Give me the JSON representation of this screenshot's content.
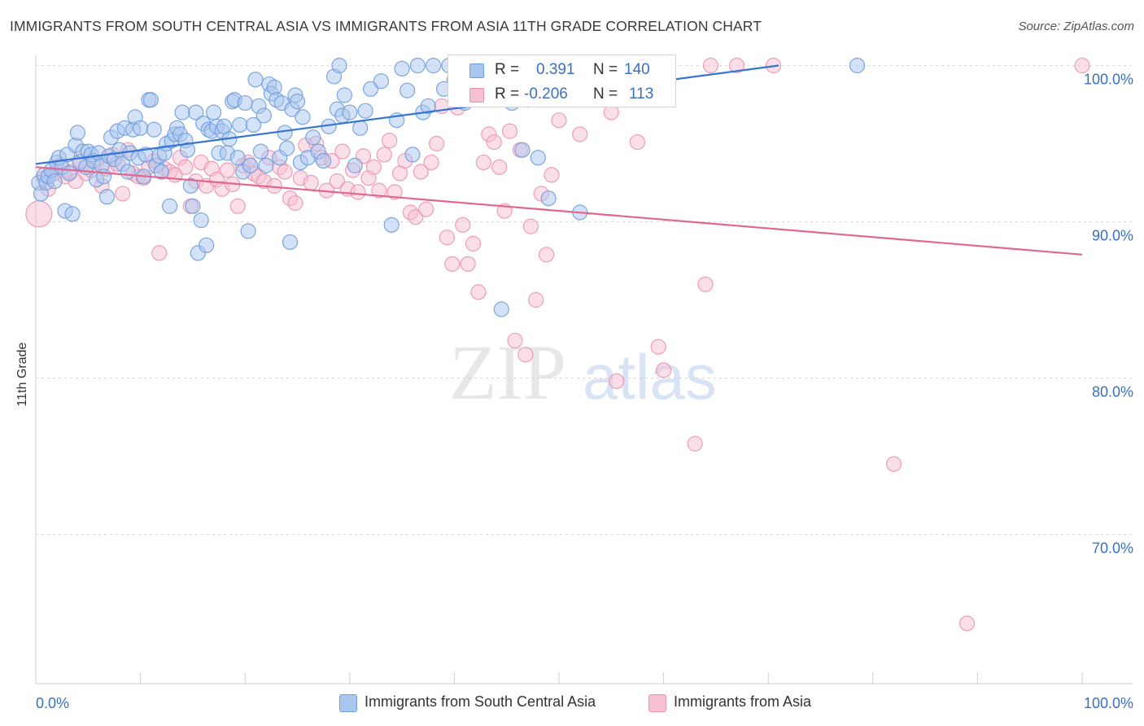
{
  "title": "IMMIGRANTS FROM SOUTH CENTRAL ASIA VS IMMIGRANTS FROM ASIA 11TH GRADE CORRELATION CHART",
  "source": "Source: ZipAtlas.com",
  "watermark": {
    "part1": "ZIP",
    "part2": "atlas"
  },
  "colors": {
    "blue_fill": "#a9c6ef",
    "blue_stroke": "#6f9ddd",
    "blue_line": "#3673d2",
    "pink_fill": "#f7c0d1",
    "pink_stroke": "#ec94b0",
    "pink_line": "#e16690",
    "axis_text": "#3a70c4",
    "grid": "#d8d8d8"
  },
  "stats": [
    {
      "r_label": "R =",
      "r_value": "0.391",
      "n_label": "N =",
      "n_value": "140"
    },
    {
      "r_label": "R =",
      "r_value": "-0.206",
      "n_label": "N =",
      "n_value": "113"
    }
  ],
  "legend": [
    "Immigrants from South Central Asia",
    "Immigrants from Asia"
  ],
  "chart_data": {
    "type": "scatter",
    "ylabel": "11th Grade",
    "xlim": [
      0,
      100
    ],
    "ylim": [
      60.5,
      101.5
    ],
    "x_tick_labels": [
      "0.0%",
      "100.0%"
    ],
    "y_ticks": [
      70,
      80,
      90,
      100
    ],
    "y_tick_labels": [
      "70.0%",
      "80.0%",
      "90.0%",
      "100.0%"
    ],
    "grid": true,
    "series": [
      {
        "name": "Immigrants from South Central Asia",
        "trend": {
          "x": [
            0,
            71
          ],
          "y": [
            93.7,
            100.0
          ]
        },
        "points": [
          [
            0.3,
            92.5
          ],
          [
            0.5,
            91.8
          ],
          [
            0.8,
            93.0
          ],
          [
            1,
            92.5
          ],
          [
            1.2,
            92.9
          ],
          [
            1.5,
            93.3
          ],
          [
            1.8,
            92.6
          ],
          [
            2,
            93.8
          ],
          [
            2.2,
            94.1
          ],
          [
            2.5,
            93.5
          ],
          [
            2.8,
            90.7
          ],
          [
            3,
            94.3
          ],
          [
            3.2,
            93.1
          ],
          [
            3.5,
            90.5
          ],
          [
            3.8,
            94.9
          ],
          [
            4,
            95.7
          ],
          [
            4.2,
            93.8
          ],
          [
            4.5,
            94.5
          ],
          [
            4.8,
            93.5
          ],
          [
            5,
            94.5
          ],
          [
            5.3,
            94.3
          ],
          [
            5.5,
            93.9
          ],
          [
            5.8,
            92.7
          ],
          [
            6,
            94.4
          ],
          [
            6.3,
            93.6
          ],
          [
            6.5,
            92.9
          ],
          [
            6.8,
            91.6
          ],
          [
            7,
            94.2
          ],
          [
            7.2,
            95.4
          ],
          [
            7.5,
            94.0
          ],
          [
            7.8,
            95.8
          ],
          [
            8,
            94.6
          ],
          [
            8.3,
            93.7
          ],
          [
            8.5,
            96.0
          ],
          [
            8.8,
            93.2
          ],
          [
            9,
            94.4
          ],
          [
            9.3,
            95.9
          ],
          [
            9.5,
            96.7
          ],
          [
            9.8,
            94.1
          ],
          [
            10,
            96.0
          ],
          [
            10.3,
            92.9
          ],
          [
            10.5,
            94.3
          ],
          [
            10.8,
            97.8
          ],
          [
            11,
            97.8
          ],
          [
            11.3,
            95.9
          ],
          [
            11.5,
            93.6
          ],
          [
            11.8,
            94.2
          ],
          [
            12,
            93.2
          ],
          [
            12.3,
            94.4
          ],
          [
            12.5,
            95.0
          ],
          [
            12.8,
            91.0
          ],
          [
            13,
            95.2
          ],
          [
            13.3,
            95.6
          ],
          [
            13.5,
            96.0
          ],
          [
            13.8,
            95.6
          ],
          [
            14,
            97.0
          ],
          [
            14.3,
            95.2
          ],
          [
            14.5,
            94.6
          ],
          [
            14.8,
            92.3
          ],
          [
            15,
            91.0
          ],
          [
            15.3,
            97.0
          ],
          [
            15.5,
            88.0
          ],
          [
            15.8,
            90.1
          ],
          [
            16,
            96.3
          ],
          [
            16.3,
            88.5
          ],
          [
            16.5,
            95.9
          ],
          [
            16.8,
            95.8
          ],
          [
            17,
            97.0
          ],
          [
            17.3,
            96.1
          ],
          [
            17.5,
            94.4
          ],
          [
            17.8,
            95.8
          ],
          [
            18,
            96.1
          ],
          [
            18.3,
            94.4
          ],
          [
            18.5,
            95.3
          ],
          [
            18.8,
            97.7
          ],
          [
            19,
            97.8
          ],
          [
            19.3,
            94.1
          ],
          [
            19.5,
            96.2
          ],
          [
            19.8,
            93.2
          ],
          [
            20,
            97.6
          ],
          [
            20.3,
            89.4
          ],
          [
            20.5,
            93.6
          ],
          [
            20.8,
            96.2
          ],
          [
            21,
            99.1
          ],
          [
            21.3,
            97.4
          ],
          [
            21.5,
            94.5
          ],
          [
            21.8,
            96.8
          ],
          [
            22,
            93.6
          ],
          [
            22.3,
            98.8
          ],
          [
            22.5,
            98.2
          ],
          [
            22.8,
            98.6
          ],
          [
            23,
            97.8
          ],
          [
            23.3,
            94.1
          ],
          [
            23.5,
            97.6
          ],
          [
            23.8,
            95.7
          ],
          [
            24,
            94.7
          ],
          [
            24.3,
            88.7
          ],
          [
            24.5,
            97.2
          ],
          [
            24.8,
            98.1
          ],
          [
            25,
            97.7
          ],
          [
            25.3,
            93.8
          ],
          [
            25.5,
            96.7
          ],
          [
            26,
            94.1
          ],
          [
            26.5,
            95.4
          ],
          [
            27,
            94.5
          ],
          [
            27.5,
            93.9
          ],
          [
            28,
            96.1
          ],
          [
            28.5,
            99.3
          ],
          [
            28.8,
            97.2
          ],
          [
            29,
            100.0
          ],
          [
            29.3,
            96.8
          ],
          [
            29.5,
            98.1
          ],
          [
            30,
            97.0
          ],
          [
            30.5,
            93.6
          ],
          [
            31,
            96.0
          ],
          [
            31.5,
            97.1
          ],
          [
            32,
            98.5
          ],
          [
            33,
            99.0
          ],
          [
            34,
            89.8
          ],
          [
            34.5,
            96.5
          ],
          [
            35,
            99.8
          ],
          [
            35.5,
            98.4
          ],
          [
            36,
            94.3
          ],
          [
            36.5,
            100.0
          ],
          [
            37,
            97.0
          ],
          [
            37.5,
            97.4
          ],
          [
            38,
            100.0
          ],
          [
            39,
            98.5
          ],
          [
            39.5,
            100.0
          ],
          [
            40,
            99.1
          ],
          [
            40.5,
            99.5
          ],
          [
            41,
            97.6
          ],
          [
            42,
            98.1
          ],
          [
            43,
            98.5
          ],
          [
            44,
            98.6
          ],
          [
            44.5,
            84.4
          ],
          [
            45,
            98.4
          ],
          [
            45.5,
            97.6
          ],
          [
            46,
            99.0
          ],
          [
            46.5,
            94.6
          ],
          [
            47,
            97.8
          ],
          [
            48,
            94.1
          ],
          [
            49,
            91.5
          ],
          [
            50,
            99.0
          ],
          [
            52,
            90.6
          ],
          [
            78.5,
            100.0
          ]
        ]
      },
      {
        "name": "Immigrants from Asia",
        "trend": {
          "x": [
            0,
            100
          ],
          "y": [
            93.5,
            87.9
          ]
        },
        "points": [
          [
            0.3,
            90.5
          ],
          [
            0.8,
            92.8
          ],
          [
            1.2,
            92.1
          ],
          [
            1.8,
            93.1
          ],
          [
            2.3,
            93.6
          ],
          [
            2.8,
            92.9
          ],
          [
            3.3,
            93.2
          ],
          [
            3.8,
            92.6
          ],
          [
            4.3,
            93.9
          ],
          [
            4.8,
            93.1
          ],
          [
            5.3,
            93.3
          ],
          [
            5.8,
            93.8
          ],
          [
            6.3,
            92.3
          ],
          [
            6.8,
            93.4
          ],
          [
            7.3,
            94.3
          ],
          [
            7.8,
            93.7
          ],
          [
            8.3,
            91.8
          ],
          [
            8.8,
            94.6
          ],
          [
            9.3,
            93.1
          ],
          [
            9.8,
            92.9
          ],
          [
            10.3,
            92.8
          ],
          [
            10.8,
            93.5
          ],
          [
            11.3,
            93.9
          ],
          [
            11.8,
            88.0
          ],
          [
            12.3,
            93.4
          ],
          [
            12.8,
            93.2
          ],
          [
            13.3,
            93.0
          ],
          [
            13.8,
            94.1
          ],
          [
            14.3,
            93.5
          ],
          [
            14.8,
            91.0
          ],
          [
            15.3,
            92.6
          ],
          [
            15.8,
            93.8
          ],
          [
            16.3,
            92.3
          ],
          [
            16.8,
            93.4
          ],
          [
            17.3,
            92.7
          ],
          [
            17.8,
            92.1
          ],
          [
            18.3,
            93.3
          ],
          [
            18.8,
            92.4
          ],
          [
            19.3,
            91.0
          ],
          [
            19.8,
            93.6
          ],
          [
            20.3,
            93.8
          ],
          [
            20.8,
            93.1
          ],
          [
            21.3,
            92.9
          ],
          [
            21.8,
            92.6
          ],
          [
            22.3,
            94.1
          ],
          [
            22.8,
            92.3
          ],
          [
            23.3,
            93.5
          ],
          [
            23.8,
            93.2
          ],
          [
            24.3,
            91.5
          ],
          [
            24.8,
            91.2
          ],
          [
            25.3,
            92.8
          ],
          [
            25.8,
            94.9
          ],
          [
            26.3,
            92.5
          ],
          [
            26.8,
            95.0
          ],
          [
            27.3,
            94.1
          ],
          [
            27.8,
            92.0
          ],
          [
            28.3,
            93.9
          ],
          [
            28.8,
            92.6
          ],
          [
            29.3,
            94.5
          ],
          [
            29.8,
            92.1
          ],
          [
            30.3,
            93.3
          ],
          [
            30.8,
            91.9
          ],
          [
            31.3,
            94.2
          ],
          [
            31.8,
            92.8
          ],
          [
            32.3,
            93.5
          ],
          [
            32.8,
            92.0
          ],
          [
            33.3,
            94.3
          ],
          [
            33.8,
            95.2
          ],
          [
            34.3,
            91.9
          ],
          [
            34.8,
            93.1
          ],
          [
            35.3,
            93.9
          ],
          [
            35.8,
            90.6
          ],
          [
            36.3,
            90.3
          ],
          [
            36.8,
            93.2
          ],
          [
            37.3,
            90.8
          ],
          [
            37.8,
            93.8
          ],
          [
            38.3,
            95.0
          ],
          [
            38.8,
            97.4
          ],
          [
            39.3,
            89.0
          ],
          [
            39.8,
            87.3
          ],
          [
            40.3,
            97.3
          ],
          [
            40.8,
            89.8
          ],
          [
            41.3,
            87.3
          ],
          [
            41.8,
            88.6
          ],
          [
            42.3,
            85.5
          ],
          [
            42.8,
            93.8
          ],
          [
            43.3,
            95.6
          ],
          [
            43.8,
            95.1
          ],
          [
            44.3,
            93.5
          ],
          [
            44.8,
            90.7
          ],
          [
            45.3,
            95.8
          ],
          [
            45.8,
            82.4
          ],
          [
            46.3,
            94.6
          ],
          [
            46.8,
            81.5
          ],
          [
            47.3,
            89.7
          ],
          [
            47.8,
            85.0
          ],
          [
            48.3,
            91.8
          ],
          [
            48.8,
            87.9
          ],
          [
            49.3,
            93.0
          ],
          [
            50,
            96.5
          ],
          [
            52,
            95.6
          ],
          [
            55,
            97.0
          ],
          [
            55.5,
            79.8
          ],
          [
            57.5,
            95.1
          ],
          [
            58,
            97.9
          ],
          [
            59.5,
            82.0
          ],
          [
            60,
            80.5
          ],
          [
            63,
            75.8
          ],
          [
            64,
            86.0
          ],
          [
            64.5,
            100.0
          ],
          [
            67,
            100.0
          ],
          [
            70.5,
            100.0
          ],
          [
            82,
            74.5
          ],
          [
            89,
            64.3
          ],
          [
            100,
            100.0
          ]
        ]
      }
    ]
  }
}
